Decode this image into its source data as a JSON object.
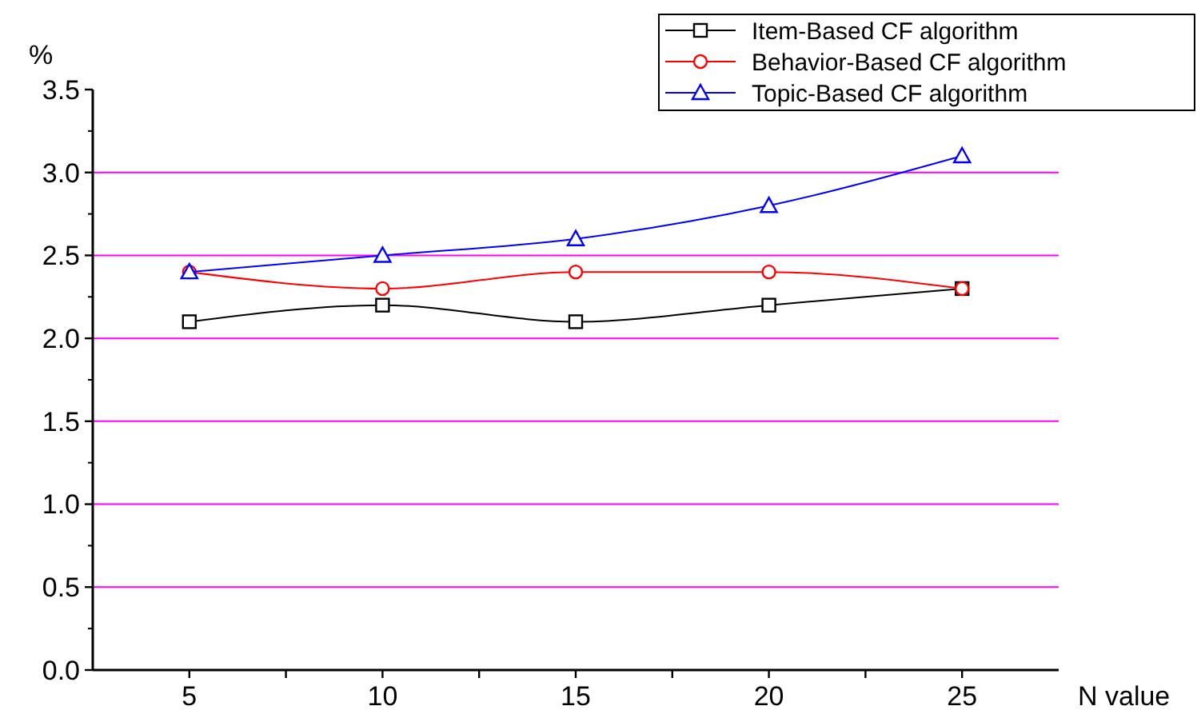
{
  "chart_data": {
    "type": "line",
    "xlabel": "N value",
    "ylabel": "%",
    "x": [
      5,
      10,
      15,
      20,
      25
    ],
    "series": [
      {
        "name": "Item-Based CF algorithm",
        "color": "#000000",
        "marker": "square",
        "values": [
          2.1,
          2.2,
          2.1,
          2.2,
          2.3
        ]
      },
      {
        "name": "Behavior-Based CF algorithm",
        "color": "#ff0000",
        "marker": "circle",
        "values": [
          2.4,
          2.3,
          2.4,
          2.4,
          2.3
        ]
      },
      {
        "name": "Topic-Based CF algorithm",
        "color": "#0000ff",
        "marker": "triangle",
        "values": [
          2.4,
          2.5,
          2.6,
          2.8,
          3.1
        ]
      }
    ],
    "xlim": [
      2.5,
      27.5
    ],
    "xticks": [
      5,
      {
        "value": 7.5,
        "label": null
      },
      10,
      {
        "value": 12.5,
        "label": null
      },
      15,
      {
        "value": 17.5,
        "label": null
      },
      20,
      {
        "value": 22.5,
        "label": null
      },
      25
    ],
    "ylim": [
      0,
      3.5
    ],
    "yticks": [
      {
        "value": 0,
        "label": "0.0"
      },
      0.5,
      {
        "value": 1,
        "label": "1.0"
      },
      1.5,
      {
        "value": 2,
        "label": "2.0"
      },
      2.5,
      {
        "value": 3,
        "label": "3.0"
      },
      3.5
    ],
    "grid": "y",
    "legend": "top right",
    "line_style": "solid"
  }
}
